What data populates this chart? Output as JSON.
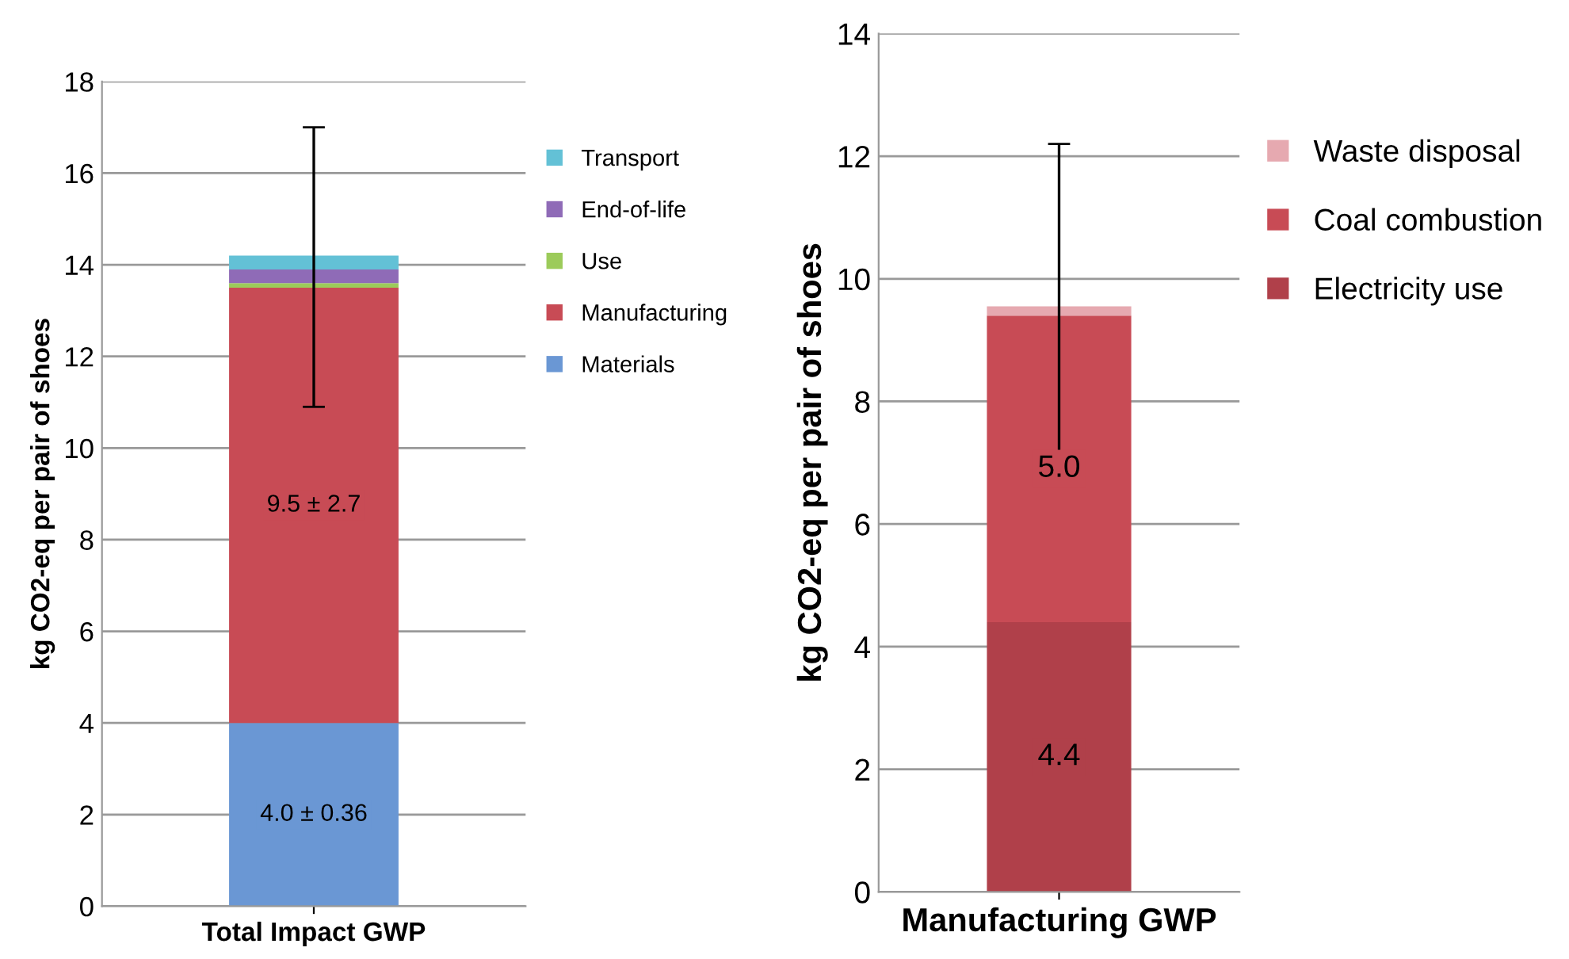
{
  "chart_data": [
    {
      "type": "bar",
      "stacked": true,
      "categories": [
        "Total Impact GWP"
      ],
      "ylabel": "kg CO2-eq per pair of shoes",
      "ylim": [
        0,
        18
      ],
      "yticks": [
        0,
        2,
        4,
        6,
        8,
        10,
        12,
        14,
        16,
        18
      ],
      "grid": "y",
      "legend": "right",
      "series": [
        {
          "name": "Materials",
          "color": "#6a97d4",
          "values": [
            4.0
          ],
          "value_labels": [
            "4.0 ± 0.36"
          ]
        },
        {
          "name": "Manufacturing",
          "color": "#c84b55",
          "values": [
            9.5
          ],
          "value_labels": [
            "9.5 ± 2.7"
          ]
        },
        {
          "name": "Use",
          "color": "#9ccb5a",
          "values": [
            0.1
          ]
        },
        {
          "name": "End-of-life",
          "color": "#8f6bb7",
          "values": [
            0.3
          ]
        },
        {
          "name": "Transport",
          "color": "#63c1d6",
          "values": [
            0.3
          ],
          "errors": [
            [
              10.9,
              17.0
            ]
          ]
        }
      ]
    },
    {
      "type": "bar",
      "stacked": true,
      "categories": [
        "Manufacturing GWP"
      ],
      "ylabel": "kg CO2-eq per pair of shoes",
      "ylim": [
        0,
        14
      ],
      "yticks": [
        0,
        2,
        4,
        6,
        8,
        10,
        12,
        14
      ],
      "grid": "y",
      "legend": "right",
      "series": [
        {
          "name": "Electricity use",
          "color": "#b0404a",
          "values": [
            4.4
          ],
          "value_labels": [
            "4.4"
          ]
        },
        {
          "name": "Coal combustion",
          "color": "#c84b55",
          "values": [
            5.0
          ],
          "value_labels": [
            "5.0"
          ]
        },
        {
          "name": "Waste disposal",
          "color": "#e6a9b0",
          "values": [
            0.15
          ],
          "errors": [
            [
              6.8,
              12.2
            ]
          ]
        }
      ]
    }
  ]
}
